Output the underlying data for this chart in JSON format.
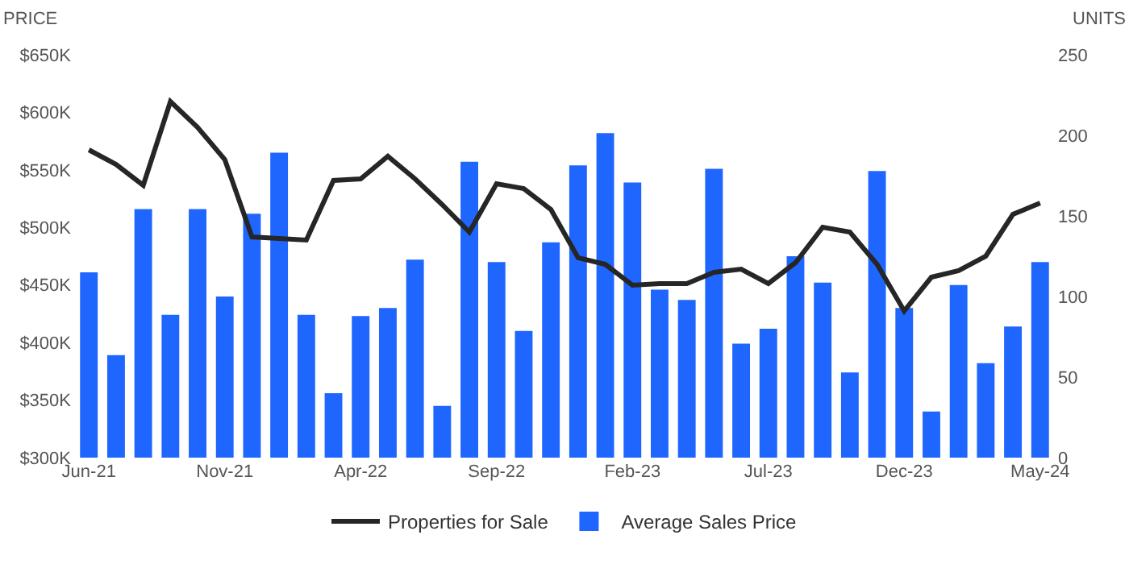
{
  "chart_data": {
    "type": "bar",
    "ylabel": "PRICE",
    "y2label": "UNITS",
    "categories": [
      "Jun-21",
      null,
      null,
      null,
      null,
      "Nov-21",
      null,
      null,
      null,
      null,
      "Apr-22",
      null,
      null,
      null,
      null,
      "Sep-22",
      null,
      null,
      null,
      null,
      "Feb-23",
      null,
      null,
      null,
      null,
      "Jul-23",
      null,
      null,
      null,
      null,
      "Dec-23",
      null,
      null,
      null,
      null,
      "May-24"
    ],
    "series": [
      {
        "name": "Properties for Sale",
        "type": "line",
        "axis": "y2",
        "color": "#262626",
        "values": [
          191,
          182,
          169,
          221,
          205,
          185,
          137,
          136,
          135,
          172,
          173,
          187,
          173,
          157,
          140,
          170,
          167,
          154,
          124,
          120,
          107,
          108,
          108,
          115,
          117,
          108,
          121,
          143,
          140,
          120,
          91,
          112,
          116,
          125,
          151,
          158
        ]
      },
      {
        "name": "Average Sales Price",
        "color": "#1f66ff",
        "values": [
          461000,
          389000,
          516000,
          424000,
          516000,
          440000,
          512000,
          565000,
          424000,
          356000,
          423000,
          430000,
          472000,
          345000,
          557000,
          470000,
          410000,
          487000,
          554000,
          582000,
          539000,
          446000,
          437000,
          551000,
          399000,
          412000,
          475000,
          452000,
          374000,
          549000,
          430000,
          340000,
          450000,
          382000,
          414000,
          470000
        ]
      }
    ],
    "ylim": [
      300000,
      650000
    ],
    "yticks": [
      {
        "value": 300000,
        "label": "$300K"
      },
      {
        "value": 350000,
        "label": "$350K"
      },
      {
        "value": 400000,
        "label": "$400K"
      },
      {
        "value": 450000,
        "label": "$450K"
      },
      {
        "value": 500000,
        "label": "$500K"
      },
      {
        "value": 550000,
        "label": "$550K"
      },
      {
        "value": 600000,
        "label": "$600K"
      },
      {
        "value": 650000,
        "label": "$650K"
      }
    ],
    "y2lim": [
      0,
      250
    ],
    "y2ticks": [
      0,
      50,
      100,
      150,
      200,
      250
    ],
    "grid": false,
    "legend": "bottom",
    "marker": "none",
    "line_style": "solid"
  }
}
